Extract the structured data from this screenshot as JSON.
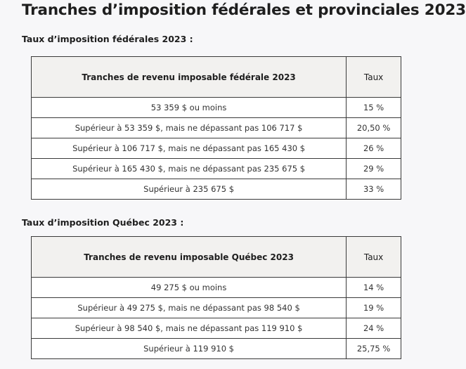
{
  "title": "Tranches d’imposition fédérales et provinciales 2023",
  "federal": {
    "heading": "Taux d’imposition fédérales 2023 :",
    "header_bracket": "Tranches de revenu imposable fédérale 2023",
    "header_rate": "Taux",
    "rows": [
      {
        "bracket": "53 359 $ ou moins",
        "rate": "15 %"
      },
      {
        "bracket": "Supérieur à 53 359 $, mais ne dépassant pas 106 717 $",
        "rate": "20,50 %"
      },
      {
        "bracket": "Supérieur à 106 717 $, mais ne dépassant pas 165 430 $",
        "rate": "26 %"
      },
      {
        "bracket": "Supérieur à 165 430 $, mais ne dépassant pas 235 675 $",
        "rate": "29 %"
      },
      {
        "bracket": "Supérieur à 235 675 $",
        "rate": "33 %"
      }
    ]
  },
  "quebec": {
    "heading": "Taux d’imposition Québec 2023 :",
    "header_bracket": "Tranches de revenu imposable Québec 2023",
    "header_rate": "Taux",
    "rows": [
      {
        "bracket": "49 275 $ ou moins",
        "rate": "14 %"
      },
      {
        "bracket": "Supérieur à 49 275 $, mais ne dépassant pas 98 540 $",
        "rate": "19 %"
      },
      {
        "bracket": "Supérieur à 98 540 $, mais ne dépassant pas 119 910 $",
        "rate": "24 %"
      },
      {
        "bracket": "Supérieur à 119 910 $",
        "rate": "25,75 %"
      }
    ]
  }
}
